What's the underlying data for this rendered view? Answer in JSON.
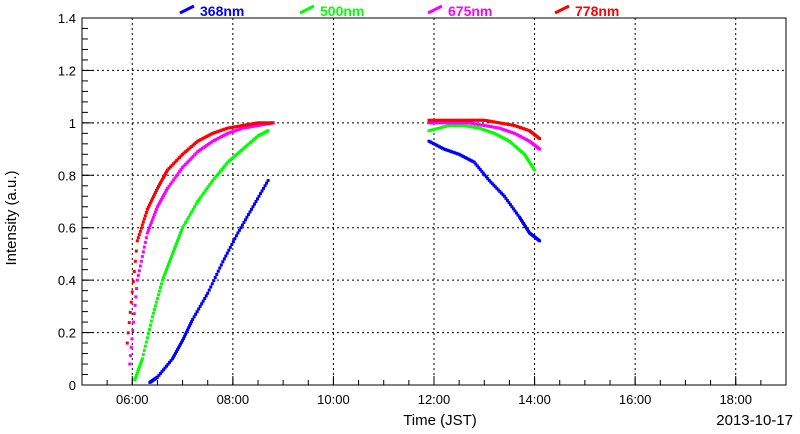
{
  "chart_data": {
    "type": "scatter",
    "xlabel": "Time (JST)",
    "ylabel": "Intensity (a.u.)",
    "date_label": "2013-10-17",
    "xlim_hours": [
      5.0,
      19.0
    ],
    "ylim": [
      0,
      1.4
    ],
    "x_ticks": [
      "06:00",
      "08:00",
      "10:00",
      "12:00",
      "14:00",
      "16:00",
      "18:00"
    ],
    "y_ticks": [
      "0",
      "0.2",
      "0.4",
      "0.6",
      "0.8",
      "1",
      "1.2",
      "1.4"
    ],
    "grid": true,
    "legend_placement": "top",
    "series": [
      {
        "name": "368nm",
        "color": "#0000ff",
        "x_hours": [
          6.35,
          6.5,
          6.8,
          7.0,
          7.2,
          7.5,
          7.8,
          8.1,
          8.4,
          8.7,
          11.9,
          12.2,
          12.5,
          12.8,
          13.1,
          13.4,
          13.7,
          13.9,
          14.1
        ],
        "values": [
          0.01,
          0.03,
          0.1,
          0.17,
          0.25,
          0.35,
          0.47,
          0.58,
          0.68,
          0.78,
          0.93,
          0.9,
          0.88,
          0.85,
          0.78,
          0.72,
          0.64,
          0.58,
          0.55
        ]
      },
      {
        "name": "500nm",
        "color": "#00ff00",
        "x_hours": [
          6.05,
          6.2,
          6.4,
          6.6,
          6.8,
          7.0,
          7.3,
          7.6,
          7.9,
          8.2,
          8.5,
          8.7,
          11.9,
          12.3,
          12.6,
          12.9,
          13.2,
          13.5,
          13.8,
          14.0
        ],
        "values": [
          0.02,
          0.1,
          0.26,
          0.4,
          0.5,
          0.6,
          0.7,
          0.78,
          0.85,
          0.9,
          0.95,
          0.97,
          0.97,
          0.99,
          0.99,
          0.98,
          0.96,
          0.93,
          0.88,
          0.82
        ]
      },
      {
        "name": "675nm",
        "color": "#ff00ff",
        "x_hours": [
          5.95,
          6.1,
          6.3,
          6.5,
          6.7,
          7.0,
          7.3,
          7.6,
          7.9,
          8.2,
          8.5,
          8.8,
          11.9,
          12.3,
          12.7,
          13.0,
          13.3,
          13.6,
          13.9,
          14.1
        ],
        "values": [
          0.08,
          0.4,
          0.58,
          0.68,
          0.75,
          0.83,
          0.89,
          0.93,
          0.96,
          0.98,
          0.99,
          1.0,
          1.0,
          1.0,
          1.0,
          0.99,
          0.98,
          0.96,
          0.93,
          0.9
        ]
      },
      {
        "name": "778nm",
        "color": "#ff0000",
        "x_hours": [
          5.9,
          6.1,
          6.3,
          6.5,
          6.7,
          7.0,
          7.3,
          7.6,
          7.9,
          8.2,
          8.5,
          8.8,
          11.9,
          12.3,
          12.7,
          13.0,
          13.3,
          13.6,
          13.9,
          14.1
        ],
        "values": [
          0.16,
          0.55,
          0.67,
          0.75,
          0.82,
          0.88,
          0.93,
          0.96,
          0.98,
          0.99,
          1.0,
          1.0,
          1.01,
          1.01,
          1.01,
          1.01,
          1.0,
          0.99,
          0.97,
          0.94
        ]
      }
    ]
  }
}
